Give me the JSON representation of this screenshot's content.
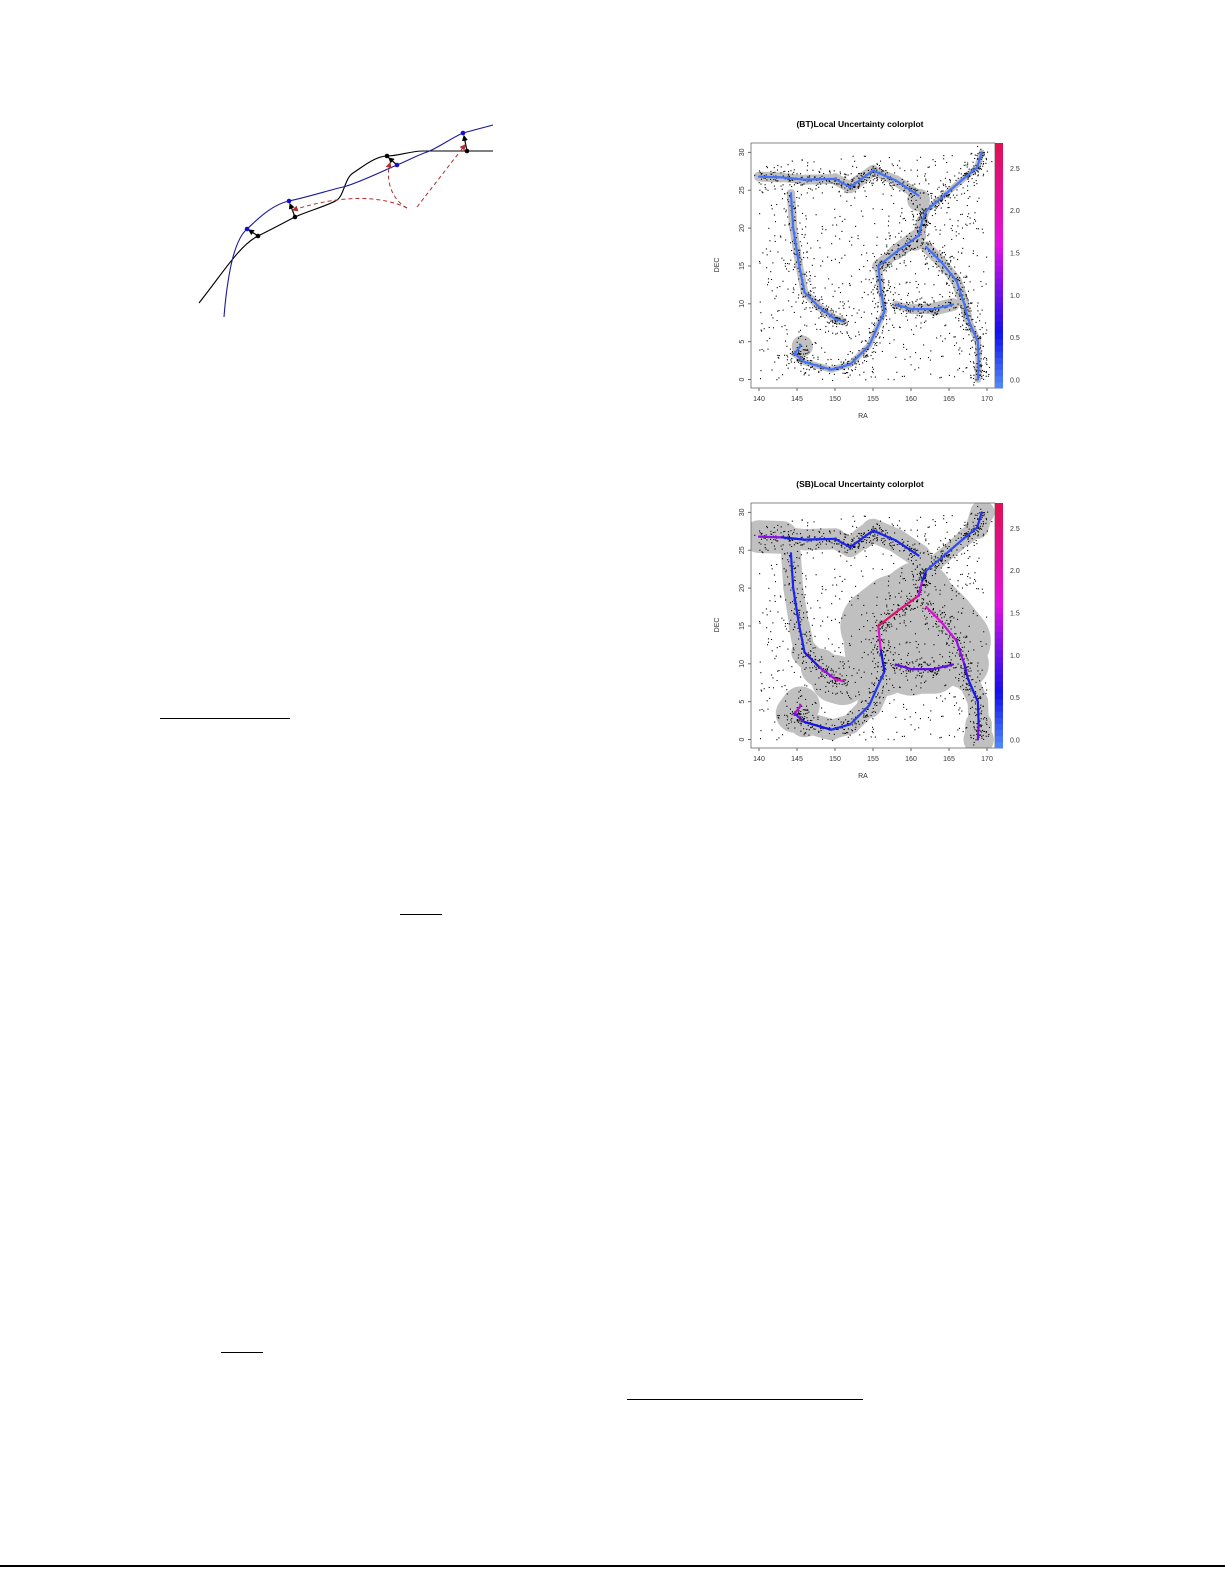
{
  "colors": {
    "black_curve": "#000000",
    "blue_curve": "#1a1a9c",
    "arrow_dashed": "#b03030",
    "band": "#c0c0c0",
    "scale_low": "#4f86f7",
    "scale_mid": "#1010ee",
    "scale_high1": "#e010e0",
    "scale_high2": "#e0104a"
  },
  "chart_data": [
    {
      "type": "scatter",
      "title": "(BT)Local Uncertainty colorplot",
      "xlabel": "RA",
      "ylabel": "DEC",
      "xlim": [
        139,
        172
      ],
      "ylim": [
        -1.5,
        31
      ],
      "xticks": [
        "140",
        "145",
        "150",
        "155",
        "160",
        "165",
        "170"
      ],
      "yticks": [
        "0",
        "5",
        "10",
        "15",
        "20",
        "25",
        "30"
      ],
      "colorbar": {
        "ticks": [
          "0.0",
          "0.5",
          "1.0",
          "1.5",
          "2.0",
          "2.5"
        ],
        "range": [
          0,
          2.8
        ]
      },
      "filaments": [
        {
          "points": [
            [
              140,
              26.8
            ],
            [
              143,
              26.7
            ],
            [
              146,
              26.4
            ],
            [
              150,
              26.5
            ],
            [
              152,
              25.4
            ],
            [
              153.5,
              26.5
            ],
            [
              155,
              27.6
            ],
            [
              158,
              26.3
            ],
            [
              161,
              24.3
            ]
          ],
          "uncertainty": [
            0.1,
            0.1,
            0.1,
            0.1,
            0.1,
            0.1,
            0.1,
            0.1,
            0.1
          ],
          "band": [
            0.7,
            0.6,
            0.6,
            0.7,
            0.8,
            0.8,
            0.7,
            0.6,
            0.8
          ]
        },
        {
          "points": [
            [
              144.2,
              24.6
            ],
            [
              144.5,
              20
            ],
            [
              145.3,
              15
            ],
            [
              146,
              11.5
            ],
            [
              148,
              9.5
            ],
            [
              150,
              8
            ],
            [
              151,
              7.7
            ]
          ],
          "uncertainty": [
            0.1,
            0.1,
            0.1,
            0.1,
            0.1,
            0.1,
            0.1
          ],
          "band": [
            0.6,
            0.5,
            0.5,
            0.5,
            0.5,
            0.5,
            0.6
          ]
        },
        {
          "points": [
            [
              145.5,
              4.5
            ],
            [
              144.7,
              3.4
            ],
            [
              146,
              2.3
            ],
            [
              149.5,
              1.3
            ],
            [
              152,
              2
            ],
            [
              154.5,
              4.5
            ],
            [
              156.5,
              9
            ],
            [
              156,
              12
            ],
            [
              155.7,
              15
            ],
            [
              158,
              16.8
            ],
            [
              161,
              19
            ],
            [
              161.5,
              21
            ],
            [
              162,
              22.3
            ]
          ],
          "uncertainty": [
            0.1,
            0.1,
            0.1,
            0.1,
            0.1,
            0.1,
            0.1,
            0.1,
            0.1,
            0.1,
            0.1,
            0.1,
            0.1
          ],
          "band": [
            0.5,
            0.4,
            0.4,
            0.4,
            0.4,
            0.4,
            0.4,
            0.4,
            0.6,
            1.0,
            1.0,
            0.5,
            0.5
          ]
        },
        {
          "points": [
            [
              162,
              22.3
            ],
            [
              164,
              24
            ],
            [
              167,
              26.6
            ],
            [
              168.7,
              28
            ],
            [
              169.3,
              30
            ]
          ],
          "uncertainty": [
            0.1,
            0.1,
            0.1,
            0.1,
            0.1
          ],
          "band": [
            0.4,
            0.4,
            0.4,
            0.4,
            0.4
          ]
        },
        {
          "points": [
            [
              162,
              17.5
            ],
            [
              164,
              15.5
            ],
            [
              166,
              13
            ],
            [
              167,
              10
            ],
            [
              167.5,
              8
            ],
            [
              168.8,
              5
            ],
            [
              168.9,
              2
            ],
            [
              168.8,
              0
            ]
          ],
          "uncertainty": [
            0.1,
            0.1,
            0.1,
            0.1,
            0.1,
            0.1,
            0.1,
            0.1
          ],
          "band": [
            0.8,
            0.7,
            0.7,
            0.7,
            0.5,
            0.4,
            0.4,
            0.5
          ]
        },
        {
          "points": [
            [
              158,
              9.9
            ],
            [
              160,
              9.3
            ],
            [
              163,
              9.3
            ],
            [
              165.5,
              9.9
            ]
          ],
          "uncertainty": [
            0.1,
            0.1,
            0.1,
            0.1
          ],
          "band": [
            0.5,
            0.5,
            0.8,
            0.9
          ]
        }
      ],
      "blobs": [
        [
          161,
          23.7,
          1.5
        ],
        [
          145.7,
          4.4,
          1.4
        ],
        [
          160.5,
          18.2,
          1.2
        ]
      ]
    },
    {
      "type": "scatter",
      "title": "(SB)Local Uncertainty colorplot",
      "xlabel": "RA",
      "ylabel": "DEC",
      "xlim": [
        139,
        172
      ],
      "ylim": [
        -1.5,
        31
      ],
      "xticks": [
        "140",
        "145",
        "150",
        "155",
        "160",
        "165",
        "170"
      ],
      "yticks": [
        "0",
        "5",
        "10",
        "15",
        "20",
        "25",
        "30"
      ],
      "colorbar": {
        "ticks": [
          "0.0",
          "0.5",
          "1.0",
          "1.5",
          "2.0",
          "2.5"
        ],
        "range": [
          0,
          2.8
        ]
      },
      "filaments": [
        {
          "points": [
            [
              140,
              26.8
            ],
            [
              143,
              26.7
            ],
            [
              146,
              26.4
            ],
            [
              150,
              26.5
            ],
            [
              152,
              25.4
            ],
            [
              153.5,
              26.5
            ],
            [
              155,
              27.6
            ],
            [
              158,
              26.3
            ],
            [
              161,
              24.3
            ]
          ],
          "uncertainty": [
            1.8,
            0.6,
            0.5,
            0.5,
            0.5,
            0.5,
            0.5,
            0.5,
            0.5
          ],
          "band": [
            3.0,
            1.3,
            1.5,
            1.3,
            1.3,
            1.3,
            1.6,
            1.5,
            1.6
          ]
        },
        {
          "points": [
            [
              144.2,
              24.6
            ],
            [
              144.5,
              20
            ],
            [
              145.3,
              15
            ],
            [
              146,
              11.5
            ],
            [
              148,
              9.5
            ],
            [
              150,
              8
            ],
            [
              151,
              7.7
            ]
          ],
          "uncertainty": [
            0.5,
            0.5,
            0.5,
            0.5,
            0.9,
            1.6,
            1.8
          ],
          "band": [
            1.3,
            1.3,
            1.3,
            1.5,
            2.0,
            3.0,
            3.3
          ]
        },
        {
          "points": [
            [
              145.5,
              4.5
            ],
            [
              144.7,
              3.4
            ],
            [
              146,
              2.3
            ],
            [
              149.5,
              1.3
            ],
            [
              152,
              2
            ],
            [
              154.5,
              4.5
            ],
            [
              156.5,
              9
            ],
            [
              156,
              12
            ],
            [
              155.7,
              15
            ],
            [
              158,
              16.8
            ],
            [
              161,
              19
            ],
            [
              161.5,
              21
            ],
            [
              162,
              22.3
            ]
          ],
          "uncertainty": [
            1.6,
            1.2,
            0.7,
            0.5,
            0.4,
            0.3,
            0.5,
            0.8,
            2.6,
            2.6,
            2.2,
            0.6,
            0.5
          ],
          "band": [
            2.5,
            2.5,
            1.5,
            1.3,
            1.3,
            1.3,
            2.0,
            4.5,
            5.0,
            5.0,
            4.0,
            1.2,
            1.2
          ]
        },
        {
          "points": [
            [
              162,
              22.3
            ],
            [
              164,
              24
            ],
            [
              167,
              26.6
            ],
            [
              168.7,
              28
            ],
            [
              169.3,
              30
            ]
          ],
          "uncertainty": [
            0.3,
            0.3,
            0.3,
            0.4,
            0.5
          ],
          "band": [
            1.0,
            1.0,
            1.0,
            1.2,
            1.8
          ]
        },
        {
          "points": [
            [
              162,
              17.5
            ],
            [
              164,
              15.5
            ],
            [
              166,
              13
            ],
            [
              167,
              10
            ],
            [
              167.5,
              8
            ],
            [
              168.8,
              5
            ],
            [
              168.9,
              2
            ],
            [
              168.8,
              0
            ]
          ],
          "uncertainty": [
            1.8,
            1.6,
            1.4,
            1.0,
            0.6,
            0.5,
            0.6,
            1.5
          ],
          "band": [
            4.5,
            4.5,
            4.5,
            2.0,
            1.5,
            1.2,
            1.5,
            2.0
          ]
        },
        {
          "points": [
            [
              158,
              9.9
            ],
            [
              160,
              9.3
            ],
            [
              163,
              9.3
            ],
            [
              165.5,
              9.9
            ]
          ],
          "uncertainty": [
            1.0,
            1.0,
            1.0,
            1.0
          ],
          "band": [
            3.5,
            3.5,
            3.0,
            2.5
          ]
        }
      ],
      "blobs": [
        [
          169.5,
          30,
          1.5
        ],
        [
          168.9,
          0,
          2.0
        ]
      ]
    }
  ]
}
